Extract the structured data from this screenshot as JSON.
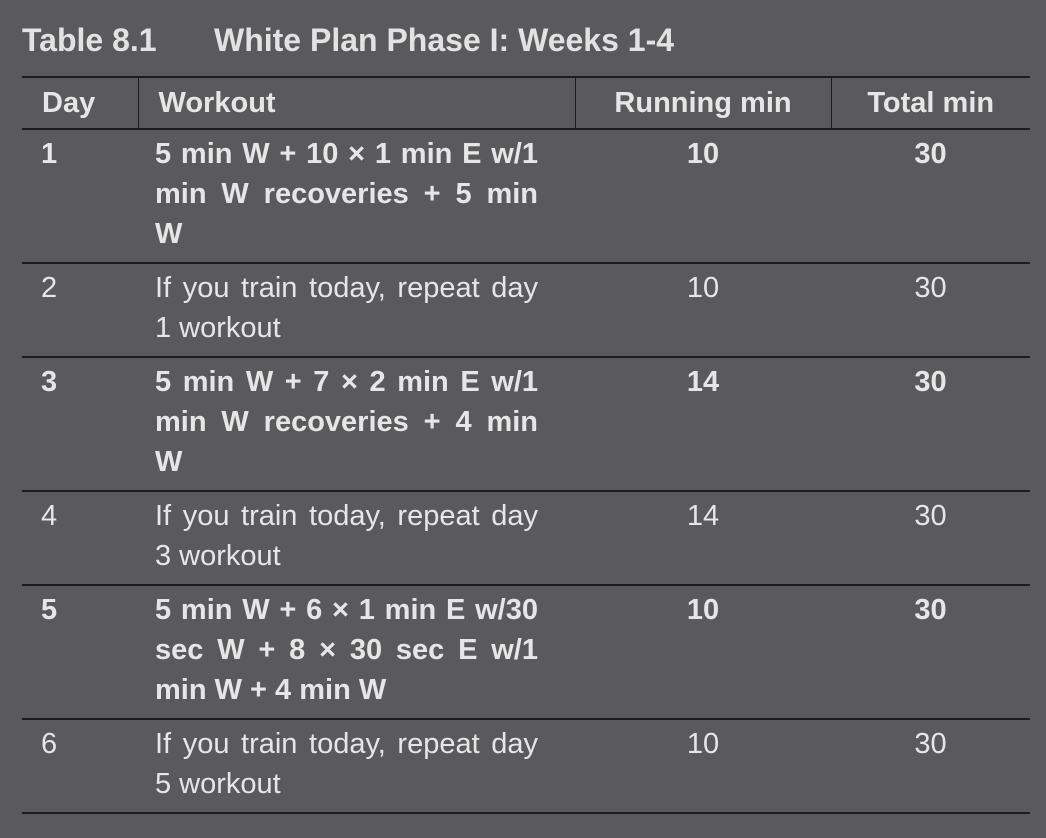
{
  "caption": {
    "number": "Table 8.1",
    "title": "White Plan Phase I: Weeks 1-4"
  },
  "table": {
    "headers": [
      "Day",
      "Workout",
      "Running min",
      "Total min"
    ],
    "rows": [
      {
        "day": "1",
        "workout": "5 min W + 10 × 1 min E w/1 min W recoveries + 5 min W",
        "running": "10",
        "total": "30",
        "bold": true
      },
      {
        "day": "2",
        "workout": "If you train today, repeat day 1 workout",
        "running": "10",
        "total": "30",
        "bold": false
      },
      {
        "day": "3",
        "workout": "5 min W + 7 × 2 min E w/1 min W recoveries + 4 min W",
        "running": "14",
        "total": "30",
        "bold": true
      },
      {
        "day": "4",
        "workout": "If you train today, repeat day 3 workout",
        "running": "14",
        "total": "30",
        "bold": false
      },
      {
        "day": "5",
        "workout": "5 min W + 6 × 1 min E w/30 sec W + 8 × 30 sec E w/1 min W + 4 min W",
        "running": "10",
        "total": "30",
        "bold": true
      },
      {
        "day": "6",
        "workout": "If you train today, repeat day 5 workout",
        "running": "10",
        "total": "30",
        "bold": false
      }
    ]
  }
}
